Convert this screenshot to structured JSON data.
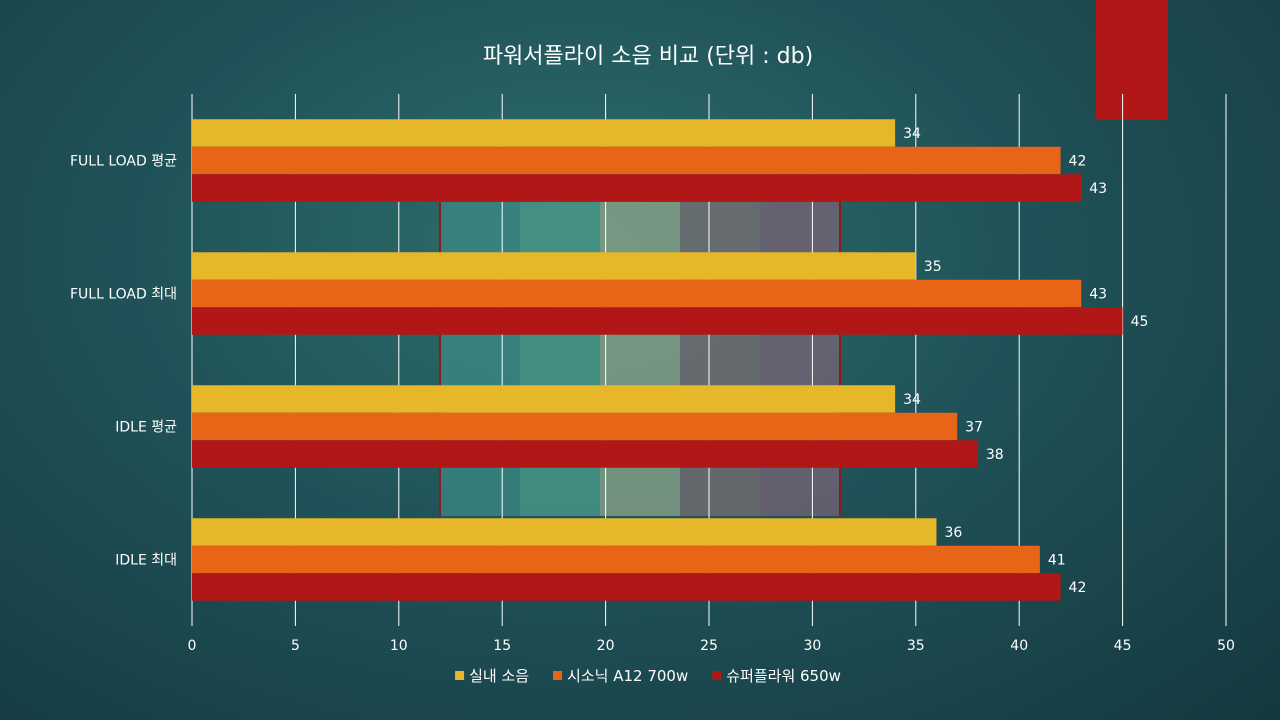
{
  "chart_data": {
    "type": "bar",
    "orientation": "horizontal",
    "title": "파워서플라이 소음 비교 (단위 : db)",
    "categories": [
      "FULL LOAD 평균",
      "FULL LOAD 최대",
      "IDLE 평균",
      "IDLE 최대"
    ],
    "series": [
      {
        "name": "실내 소음",
        "color": "#e6b729",
        "values": [
          34,
          35,
          34,
          36
        ]
      },
      {
        "name": "시소닉 A12 700w",
        "color": "#e86416",
        "values": [
          42,
          43,
          37,
          41
        ]
      },
      {
        "name": "슈퍼플라워 650w",
        "color": "#b01716",
        "values": [
          43,
          45,
          38,
          42
        ]
      }
    ],
    "xlim": [
      0,
      50
    ],
    "x_ticks": [
      0,
      5,
      10,
      15,
      20,
      25,
      30,
      35,
      40,
      45,
      50
    ],
    "grid": true,
    "data_labels": true,
    "legend_position": "bottom"
  }
}
